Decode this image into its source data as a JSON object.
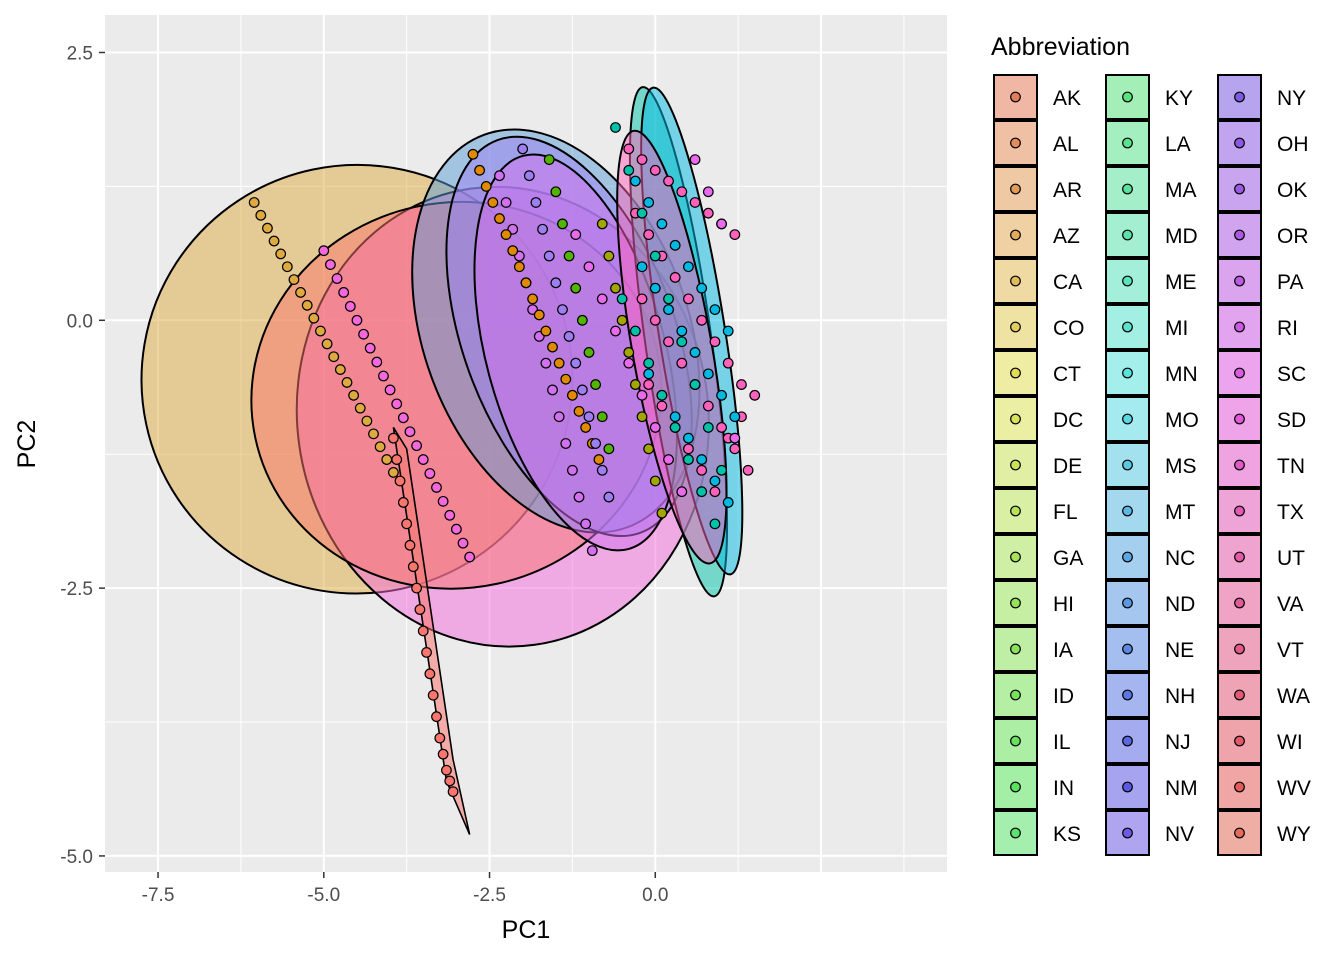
{
  "chart_data": {
    "type": "scatter",
    "title": "",
    "xlabel": "PC1",
    "ylabel": "PC2",
    "xlim": [
      -8.3,
      4.4
    ],
    "ylim": [
      -5.15,
      2.85
    ],
    "x_ticks": [
      -7.5,
      -5.0,
      -2.5,
      0.0
    ],
    "x_tick_labels": [
      "-7.5",
      "-5.0",
      "-2.5",
      "0.0"
    ],
    "y_ticks": [
      -5.0,
      -2.5,
      0.0,
      2.5
    ],
    "y_tick_labels": [
      "-5.0",
      "-2.5",
      "0.0",
      "2.5"
    ],
    "grid": true,
    "panel_background": "#ebebeb",
    "legend": {
      "title": "Abbreviation",
      "placement": "right",
      "entries": [
        "AK",
        "AL",
        "AR",
        "AZ",
        "CA",
        "CO",
        "CT",
        "DC",
        "DE",
        "FL",
        "GA",
        "HI",
        "IA",
        "ID",
        "IL",
        "IN",
        "KS",
        "KY",
        "LA",
        "MA",
        "MD",
        "ME",
        "MI",
        "MN",
        "MO",
        "MS",
        "MT",
        "NC",
        "ND",
        "NE",
        "NH",
        "NJ",
        "NM",
        "NV",
        "NY",
        "OH",
        "OK",
        "OR",
        "PA",
        "RI",
        "SC",
        "SD",
        "TN",
        "TX",
        "UT",
        "VA",
        "VT",
        "WA",
        "WI",
        "WV",
        "WY"
      ]
    },
    "ellipses": [
      {
        "series": "CO",
        "color": "#DEAA40",
        "cx": -4.5,
        "cy": -0.55,
        "rx": 3.25,
        "ry": 2.0,
        "angle": 12
      },
      {
        "series": "TN",
        "color": "#F368DC",
        "cx": -2.3,
        "cy": -0.9,
        "rx": 3.1,
        "ry": 2.15,
        "angle": 8
      },
      {
        "series": "WV",
        "color": "#F8766D",
        "cx": -3.0,
        "cy": -0.7,
        "rx": 3.1,
        "ry": 1.8,
        "angle": 12
      },
      {
        "series": "NV",
        "color": "#5C9ED8",
        "cx": -1.5,
        "cy": -0.1,
        "rx": 2.0,
        "ry": 1.95,
        "angle": 20
      },
      {
        "series": "OK",
        "color": "#9E7FF2",
        "cx": -1.3,
        "cy": -0.15,
        "rx": 1.6,
        "ry": 1.95,
        "angle": 20
      },
      {
        "series": "PA",
        "color": "#D270F0",
        "cx": -1.2,
        "cy": -0.3,
        "rx": 1.35,
        "ry": 1.9,
        "angle": 15
      },
      {
        "series": "NC",
        "color": "#00C1AA",
        "cx": 0.35,
        "cy": -0.2,
        "rx": 0.5,
        "ry": 2.4,
        "angle": 8
      },
      {
        "series": "NJ",
        "color": "#00B9E3",
        "cx": 0.55,
        "cy": -0.1,
        "rx": 0.5,
        "ry": 2.3,
        "angle": 9
      },
      {
        "series": "VA",
        "color": "#FF62BC",
        "cx": 0.25,
        "cy": -0.25,
        "rx": 0.6,
        "ry": 2.05,
        "angle": 10
      }
    ],
    "series": [
      {
        "name": "CO",
        "color": "#DEAA40",
        "x": [
          -6.05,
          -5.95,
          -5.85,
          -5.75,
          -5.65,
          -5.55,
          -5.45,
          -5.35,
          -5.25,
          -5.15,
          -5.05,
          -4.95,
          -4.85,
          -4.75,
          -4.65,
          -4.55,
          -4.45,
          -4.35,
          -4.25,
          -4.15,
          -4.05,
          -3.95
        ],
        "y": [
          1.1,
          0.98,
          0.86,
          0.74,
          0.62,
          0.5,
          0.38,
          0.26,
          0.14,
          0.02,
          -0.1,
          -0.22,
          -0.34,
          -0.46,
          -0.58,
          -0.7,
          -0.82,
          -0.94,
          -1.06,
          -1.18,
          -1.3,
          -1.42
        ]
      },
      {
        "name": "TN",
        "color": "#F368DC",
        "x": [
          -5.0,
          -4.9,
          -4.8,
          -4.7,
          -4.6,
          -4.5,
          -4.4,
          -4.3,
          -4.2,
          -4.1,
          -4.0,
          -3.9,
          -3.8,
          -3.7,
          -3.6,
          -3.5,
          -3.4,
          -3.3,
          -3.2,
          -3.1,
          -3.0,
          -2.9,
          -2.8
        ],
        "y": [
          0.65,
          0.52,
          0.39,
          0.26,
          0.13,
          0.0,
          -0.13,
          -0.26,
          -0.39,
          -0.52,
          -0.65,
          -0.78,
          -0.91,
          -1.04,
          -1.17,
          -1.3,
          -1.43,
          -1.56,
          -1.69,
          -1.82,
          -1.95,
          -2.08,
          -2.21
        ]
      },
      {
        "name": "AK",
        "color": "#F8766D",
        "x": [
          -3.95,
          -3.9,
          -3.85,
          -3.8,
          -3.75,
          -3.7,
          -3.65,
          -3.6,
          -3.55,
          -3.5,
          -3.45,
          -3.4,
          -3.35,
          -3.3,
          -3.25,
          -3.2,
          -3.15,
          -3.1,
          -3.05
        ],
        "y": [
          -1.1,
          -1.3,
          -1.5,
          -1.7,
          -1.9,
          -2.1,
          -2.3,
          -2.5,
          -2.7,
          -2.9,
          -3.1,
          -3.3,
          -3.5,
          -3.7,
          -3.9,
          -4.05,
          -4.2,
          -4.3,
          -4.4
        ]
      },
      {
        "name": "PA",
        "color": "#D270F0",
        "x": [
          -2.35,
          -2.25,
          -2.15,
          -2.05,
          -1.95,
          -1.85,
          -1.75,
          -1.65,
          -1.55,
          -1.45,
          -1.35,
          -1.25,
          -1.15,
          -1.05,
          -0.95
        ],
        "y": [
          1.35,
          1.1,
          0.85,
          0.6,
          0.35,
          0.1,
          -0.15,
          -0.4,
          -0.65,
          -0.9,
          -1.15,
          -1.4,
          -1.65,
          -1.9,
          -2.15
        ]
      },
      {
        "name": "CA",
        "color": "#E18A00",
        "x": [
          -2.75,
          -2.65,
          -2.55,
          -2.45,
          -2.35,
          -2.25,
          -2.15,
          -2.05,
          -1.95,
          -1.85,
          -1.75,
          -1.65,
          -1.55,
          -1.45,
          -1.35,
          -1.25,
          -1.15,
          -1.05,
          -0.95,
          -0.85
        ],
        "y": [
          1.55,
          1.4,
          1.25,
          1.1,
          0.95,
          0.8,
          0.65,
          0.5,
          0.35,
          0.2,
          0.05,
          -0.1,
          -0.25,
          -0.4,
          -0.55,
          -0.7,
          -0.85,
          -1.0,
          -1.15,
          -1.3
        ]
      },
      {
        "name": "OK",
        "color": "#9E7FF2",
        "x": [
          -2.0,
          -1.9,
          -1.8,
          -1.7,
          -1.6,
          -1.5,
          -1.4,
          -1.3,
          -1.2,
          -1.1,
          -1.0,
          -0.9,
          -0.8,
          -0.7
        ],
        "y": [
          1.6,
          1.35,
          1.1,
          0.85,
          0.6,
          0.35,
          0.1,
          -0.15,
          -0.4,
          -0.65,
          -0.9,
          -1.15,
          -1.4,
          -1.65
        ]
      },
      {
        "name": "KS",
        "color": "#53B400",
        "x": [
          -1.6,
          -1.5,
          -1.4,
          -1.3,
          -1.2,
          -1.1,
          -1.0,
          -0.9,
          -0.8,
          -0.7
        ],
        "y": [
          1.5,
          1.2,
          0.9,
          0.6,
          0.3,
          0.0,
          -0.3,
          -0.6,
          -0.9,
          -1.2
        ]
      },
      {
        "name": "VA",
        "color": "#FF62BC",
        "x": [
          -0.4,
          -0.2,
          0.0,
          0.2,
          0.4,
          0.6,
          0.8,
          1.0,
          1.2,
          -0.3,
          -0.1,
          0.1,
          0.3,
          0.5,
          0.7,
          0.9,
          1.1,
          1.3,
          -0.2,
          0.0,
          0.2,
          0.4,
          0.6,
          0.8,
          1.0,
          1.2,
          1.4,
          -0.1,
          0.1,
          0.3,
          0.5,
          0.7,
          0.9,
          1.1,
          1.3,
          1.5
        ],
        "y": [
          1.6,
          1.5,
          1.4,
          1.3,
          1.2,
          1.1,
          1.0,
          0.9,
          0.8,
          1.0,
          0.8,
          0.6,
          0.4,
          0.2,
          0.0,
          -0.2,
          -0.4,
          -0.6,
          0.2,
          0.0,
          -0.2,
          -0.4,
          -0.6,
          -0.8,
          -1.0,
          -1.2,
          -1.4,
          -0.6,
          -0.8,
          -1.0,
          -1.2,
          -1.4,
          -1.6,
          -1.1,
          -0.9,
          -0.7
        ]
      },
      {
        "name": "NJ",
        "color": "#00B9E3",
        "x": [
          -0.3,
          -0.1,
          0.1,
          0.3,
          0.5,
          0.7,
          0.9,
          1.1,
          -0.2,
          0.0,
          0.2,
          0.4,
          0.6,
          0.8,
          1.0,
          1.2,
          -0.1,
          0.1,
          0.3,
          0.5,
          0.7,
          0.9,
          1.1
        ],
        "y": [
          1.3,
          1.1,
          0.9,
          0.7,
          0.5,
          0.3,
          0.1,
          -0.1,
          0.5,
          0.3,
          0.1,
          -0.1,
          -0.3,
          -0.5,
          -0.7,
          -0.9,
          -0.5,
          -0.7,
          -0.9,
          -1.1,
          -1.3,
          -1.5,
          -1.7
        ]
      },
      {
        "name": "NC",
        "color": "#00C1AA",
        "x": [
          -0.6,
          -0.4,
          -0.2,
          0.0,
          0.2,
          0.4,
          0.6,
          0.8,
          1.0,
          -0.5,
          -0.3,
          -0.1,
          0.1,
          0.3,
          0.5,
          0.7,
          0.9
        ],
        "y": [
          1.8,
          1.4,
          1.0,
          0.6,
          0.2,
          -0.2,
          -0.6,
          -1.0,
          -1.4,
          0.2,
          -0.1,
          -0.4,
          -0.7,
          -1.0,
          -1.3,
          -1.6,
          -1.9
        ]
      },
      {
        "name": "GA",
        "color": "#A3A500",
        "x": [
          -0.8,
          -0.7,
          -0.6,
          -0.5,
          -0.4,
          -0.3,
          -0.2,
          -0.1,
          0.0,
          0.1
        ],
        "y": [
          0.9,
          0.6,
          0.3,
          0.0,
          -0.3,
          -0.6,
          -0.9,
          -1.2,
          -1.5,
          -1.8
        ]
      },
      {
        "name": "SD",
        "color": "#EA6AED",
        "x": [
          -1.2,
          -1.0,
          -0.8,
          -0.6,
          -0.4,
          -0.2,
          0.0,
          0.2,
          0.4,
          0.6,
          0.8,
          1.0,
          1.2
        ],
        "y": [
          0.8,
          0.5,
          0.2,
          -0.1,
          -0.4,
          -0.7,
          -1.0,
          -1.3,
          -1.6,
          1.5,
          1.2,
          0.9,
          -1.1
        ]
      }
    ]
  }
}
